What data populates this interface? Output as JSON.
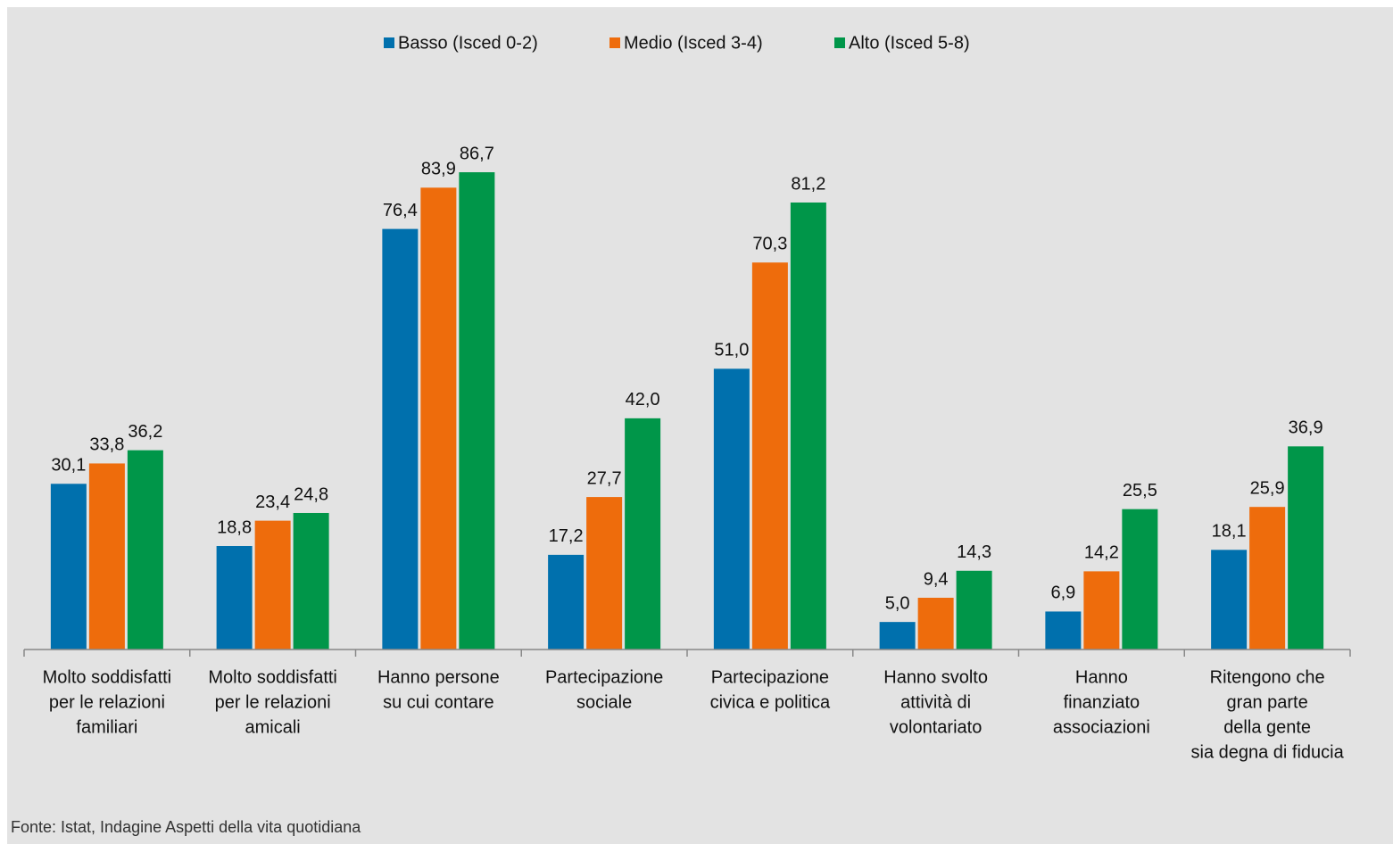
{
  "chart_data": {
    "type": "bar",
    "categories": [
      [
        "Molto soddisfatti",
        "per le relazioni",
        "familiari"
      ],
      [
        "Molto soddisfatti",
        "per le relazioni",
        "amicali"
      ],
      [
        "Hanno persone",
        "su cui contare"
      ],
      [
        "Partecipazione",
        "sociale"
      ],
      [
        "Partecipazione",
        "civica e politica"
      ],
      [
        "Hanno svolto",
        "attività di",
        "volontariato"
      ],
      [
        "Hanno",
        "finanziato",
        "associazioni"
      ],
      [
        "Ritengono che",
        "gran parte",
        "della gente",
        "sia  degna di fiducia"
      ]
    ],
    "series": [
      {
        "name": "Basso (Isced 0-2)",
        "color": "#0070ad",
        "values": [
          30.1,
          18.8,
          76.4,
          17.2,
          51.0,
          5.0,
          6.9,
          18.1
        ],
        "value_labels": [
          "30,1",
          "18,8",
          "76,4",
          "17,2",
          "51,0",
          "5,0",
          "6,9",
          "18,1"
        ]
      },
      {
        "name": "Medio (Isced 3-4)",
        "color": "#ee6c0c",
        "values": [
          33.8,
          23.4,
          83.9,
          27.7,
          70.3,
          9.4,
          14.2,
          25.9
        ],
        "value_labels": [
          "33,8",
          "23,4",
          "83,9",
          "27,7",
          "70,3",
          "9,4",
          "14,2",
          "25,9"
        ]
      },
      {
        "name": "Alto (Isced 5-8)",
        "color": "#009649",
        "values": [
          36.2,
          24.8,
          86.7,
          42.0,
          81.2,
          14.3,
          25.5,
          36.9
        ],
        "value_labels": [
          "36,2",
          "24,8",
          "86,7",
          "42,0",
          "81,2",
          "14,3",
          "25,5",
          "36,9"
        ]
      }
    ],
    "ylim": [
      0,
      100
    ],
    "legend": "top",
    "source": "Fonte: Istat, Indagine Aspetti della vita quotidiana"
  }
}
